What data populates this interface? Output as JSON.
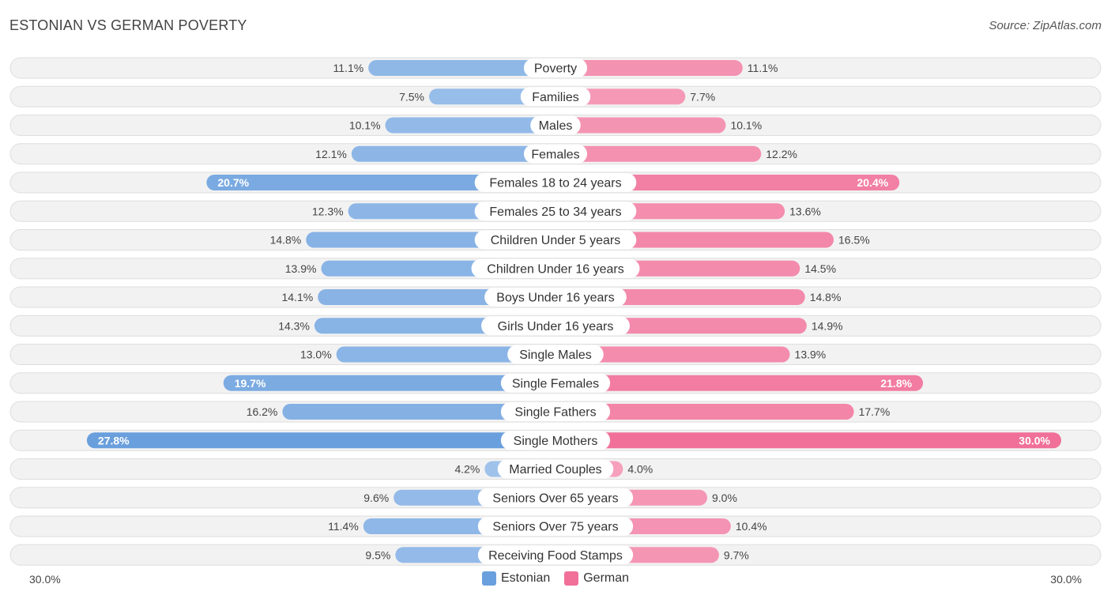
{
  "title": "ESTONIAN VS GERMAN POVERTY",
  "source": "Source: ZipAtlas.com",
  "colors": {
    "estonian": "#6a9fdd",
    "german": "#f07099",
    "estonian_light": "#a8c8ee",
    "german_light": "#f7a8c2"
  },
  "chart_data": {
    "type": "bar",
    "orientation": "horizontal-diverging",
    "categories": [
      "Poverty",
      "Families",
      "Males",
      "Females",
      "Females 18 to 24 years",
      "Females 25 to 34 years",
      "Children Under 5 years",
      "Children Under 16 years",
      "Boys Under 16 years",
      "Girls Under 16 years",
      "Single Males",
      "Single Females",
      "Single Fathers",
      "Single Mothers",
      "Married Couples",
      "Seniors Over 65 years",
      "Seniors Over 75 years",
      "Receiving Food Stamps"
    ],
    "series": [
      {
        "name": "Estonian",
        "values": [
          11.1,
          7.5,
          10.1,
          12.1,
          20.7,
          12.3,
          14.8,
          13.9,
          14.1,
          14.3,
          13.0,
          19.7,
          16.2,
          27.8,
          4.2,
          9.6,
          11.4,
          9.5
        ],
        "labels": [
          "11.1%",
          "7.5%",
          "10.1%",
          "12.1%",
          "20.7%",
          "12.3%",
          "14.8%",
          "13.9%",
          "14.1%",
          "14.3%",
          "13.0%",
          "19.7%",
          "16.2%",
          "27.8%",
          "4.2%",
          "9.6%",
          "11.4%",
          "9.5%"
        ]
      },
      {
        "name": "German",
        "values": [
          11.1,
          7.7,
          10.1,
          12.2,
          20.4,
          13.6,
          16.5,
          14.5,
          14.8,
          14.9,
          13.9,
          21.8,
          17.7,
          30.0,
          4.0,
          9.0,
          10.4,
          9.7
        ],
        "labels": [
          "11.1%",
          "7.7%",
          "10.1%",
          "12.2%",
          "20.4%",
          "13.6%",
          "16.5%",
          "14.5%",
          "14.8%",
          "14.9%",
          "13.9%",
          "21.8%",
          "17.7%",
          "30.0%",
          "4.0%",
          "9.0%",
          "10.4%",
          "9.7%"
        ]
      }
    ],
    "xlim": [
      0,
      30
    ],
    "axis_left_label": "30.0%",
    "axis_right_label": "30.0%",
    "legend": [
      "Estonian",
      "German"
    ],
    "legend_position": "bottom-center"
  }
}
